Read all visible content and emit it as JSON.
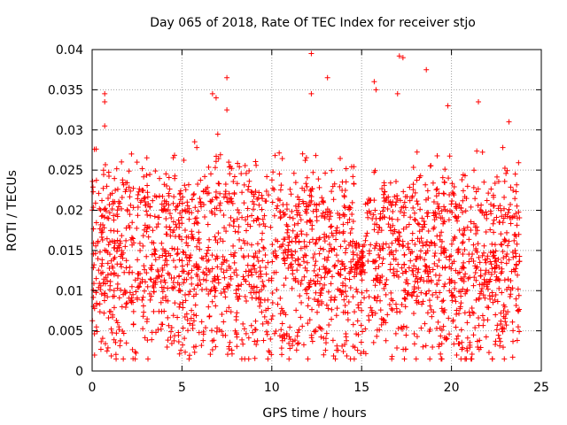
{
  "chart_data": {
    "type": "scatter",
    "title": "Day 065 of 2018, Rate Of TEC Index for receiver stjo",
    "xlabel": "GPS time / hours",
    "ylabel": "ROTI / TECUs",
    "xlim": [
      0,
      25
    ],
    "ylim": [
      0,
      0.04
    ],
    "xticks": [
      "0",
      "5",
      "10",
      "15",
      "20",
      "25"
    ],
    "yticks": [
      "0",
      "0.005",
      "0.01",
      "0.015",
      "0.02",
      "0.025",
      "0.03",
      "0.035",
      "0.04"
    ],
    "grid": true,
    "marker": "+",
    "series": [
      {
        "name": "stjo",
        "color": "#ff0000",
        "time_range_hours": [
          0,
          23.8
        ],
        "roti_range_tecu": [
          0.0015,
          0.0395
        ],
        "dense_band_tecu": [
          0.005,
          0.022
        ],
        "outliers": [
          {
            "x": 0.7,
            "y": 0.0345
          },
          {
            "x": 0.7,
            "y": 0.0335
          },
          {
            "x": 0.7,
            "y": 0.0305
          },
          {
            "x": 6.7,
            "y": 0.0345
          },
          {
            "x": 6.9,
            "y": 0.034
          },
          {
            "x": 7.5,
            "y": 0.0365
          },
          {
            "x": 7.5,
            "y": 0.0325
          },
          {
            "x": 12.2,
            "y": 0.0395
          },
          {
            "x": 12.2,
            "y": 0.0345
          },
          {
            "x": 13.1,
            "y": 0.0365
          },
          {
            "x": 15.7,
            "y": 0.036
          },
          {
            "x": 15.8,
            "y": 0.035
          },
          {
            "x": 17.1,
            "y": 0.0392
          },
          {
            "x": 17.3,
            "y": 0.039
          },
          {
            "x": 17.0,
            "y": 0.0345
          },
          {
            "x": 18.6,
            "y": 0.0375
          },
          {
            "x": 19.8,
            "y": 0.033
          },
          {
            "x": 21.5,
            "y": 0.0335
          },
          {
            "x": 23.2,
            "y": 0.031
          }
        ]
      }
    ]
  }
}
